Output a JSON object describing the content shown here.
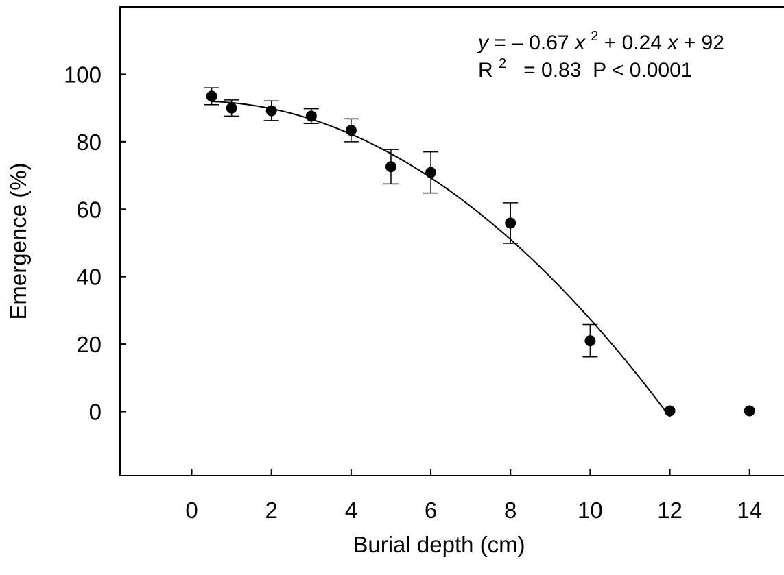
{
  "chart_data": {
    "type": "scatter",
    "title": "",
    "xlabel": "Burial depth (cm)",
    "ylabel": "Emergence (%)",
    "xlim": [
      -1.8,
      14.9
    ],
    "ylim": [
      -19,
      120
    ],
    "xticks": [
      0,
      2,
      4,
      6,
      8,
      10,
      12,
      14
    ],
    "yticks": [
      0,
      20,
      40,
      60,
      80,
      100
    ],
    "grid": false,
    "legend": "none",
    "series": [
      {
        "type": "scatter_errorbar",
        "x": [
          0.5,
          1,
          2,
          3,
          4,
          5,
          6,
          8,
          10,
          12,
          14
        ],
        "y": [
          93.5,
          90,
          89.2,
          87.6,
          83.4,
          72.6,
          70.9,
          55.9,
          21,
          0.2,
          0.2
        ],
        "err": [
          2.5,
          2.4,
          2.9,
          2.2,
          3.4,
          5.1,
          6.1,
          6.0,
          4.8,
          0,
          0
        ]
      }
    ],
    "fit": {
      "type": "quadratic",
      "a": -0.67,
      "b": 0.24,
      "c": 92,
      "x_range": [
        0.5,
        12
      ]
    },
    "annotations": {
      "equation": {
        "y_var": "y",
        "part1": " = – 0.67",
        "x_var1": "x",
        "sup": "2",
        "part2": " + 0.24",
        "x_var2": "x",
        "part3": " + 92"
      },
      "stats": {
        "r_label": "R",
        "r_sup": "2",
        "r_rest": "  = 0.83  P < 0.0001"
      }
    },
    "colors": {
      "marker": "#000000",
      "line": "#000000"
    }
  }
}
